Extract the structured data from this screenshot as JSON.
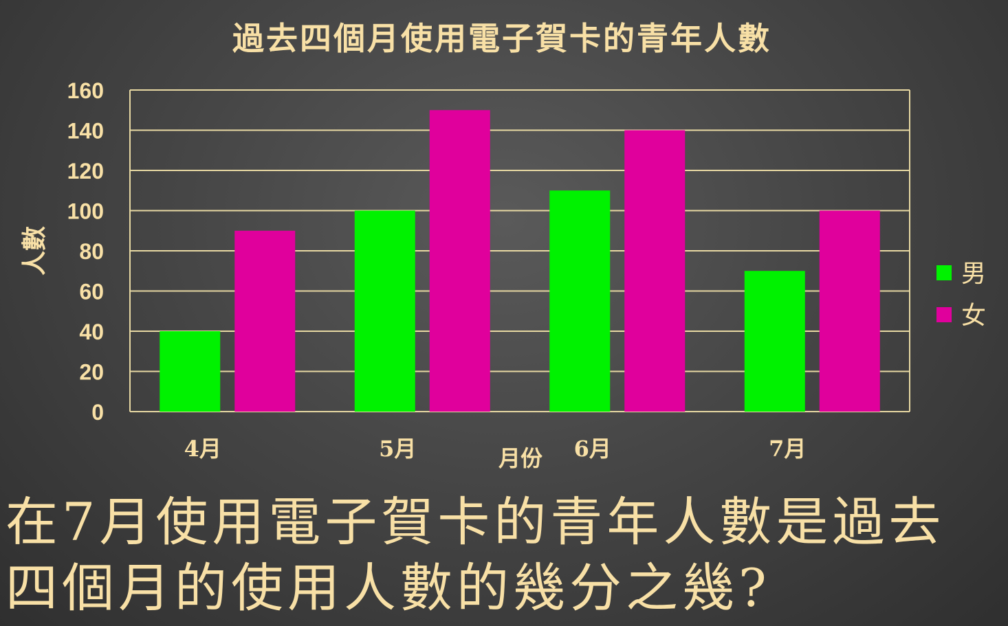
{
  "chart_data": {
    "type": "bar",
    "title": "過去四個月使用電子賀卡的青年人數",
    "xlabel": "月份",
    "ylabel": "人數",
    "categories": [
      "4月",
      "5月",
      "6月",
      "7月"
    ],
    "series": [
      {
        "name": "男",
        "color": "#00f200",
        "values": [
          40,
          100,
          110,
          70
        ]
      },
      {
        "name": "女",
        "color": "#e0009c",
        "values": [
          90,
          150,
          140,
          100
        ]
      }
    ],
    "ylim": [
      0,
      160
    ],
    "yticks": [
      "0",
      "20",
      "40",
      "60",
      "80",
      "100",
      "120",
      "140",
      "160"
    ],
    "grid": true,
    "legend_position": "right",
    "text_color": "#f8e0a6",
    "grid_color": "#e8d9a3"
  },
  "question": {
    "line1": "在7月使用電子賀卡的青年人數是過去",
    "line2": "四個月的使用人數的幾分之幾?"
  }
}
